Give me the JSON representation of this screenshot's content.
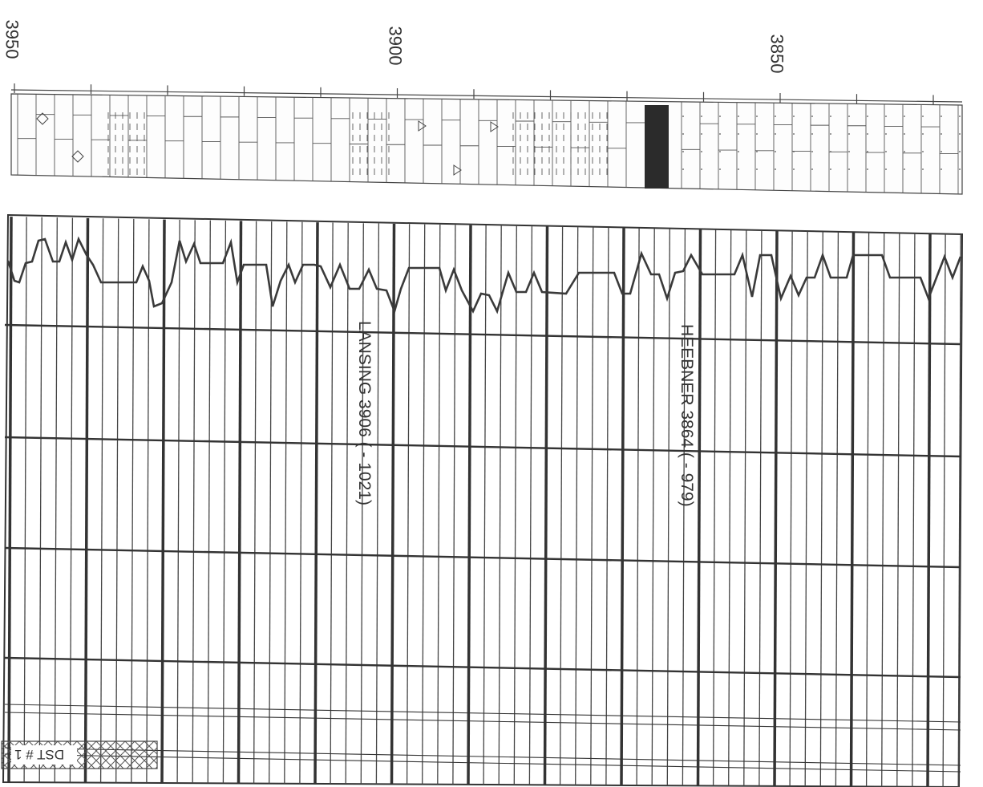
{
  "depth_scale": {
    "labels": [
      "3950",
      "3900",
      "3850"
    ]
  },
  "formation_tops": [
    {
      "label": "LANSING 3906 ( - 1021)"
    },
    {
      "label": "HEEBNER 3864 ( - 979)"
    }
  ],
  "dst": {
    "label": "DST # 1"
  },
  "colors": {
    "ink": "#3a3a3a",
    "paper": "#ffffff",
    "dark_bed": "#2b2b2b"
  },
  "lithology_track": {
    "intervals": [
      "limestone",
      "shale",
      "limestone",
      "shale",
      "limestone",
      "coal",
      "dolomite"
    ]
  }
}
